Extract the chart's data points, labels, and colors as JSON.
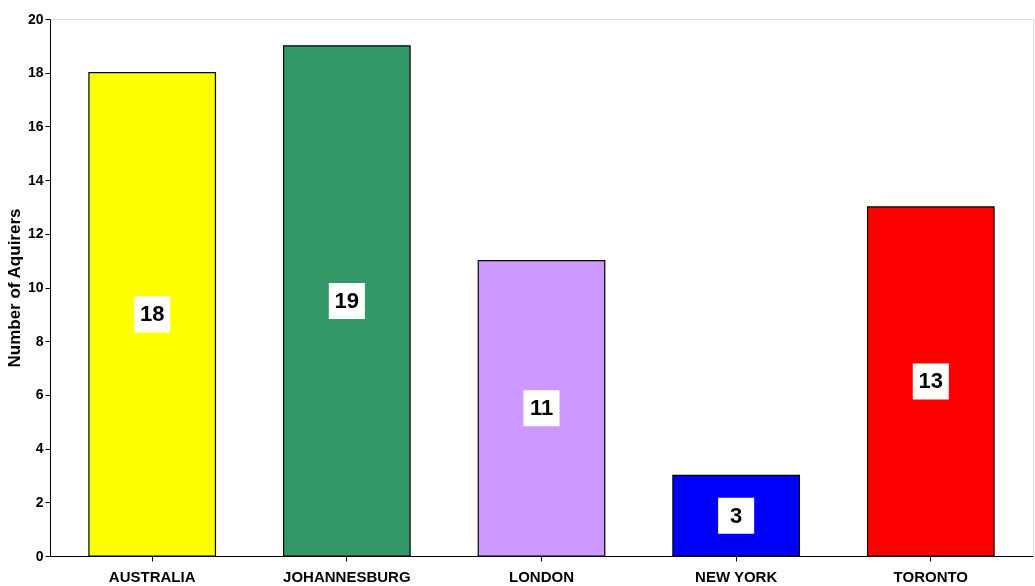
{
  "chart_data": {
    "type": "bar",
    "ylabel": "Number of Aquirers",
    "categories": [
      "AUSTRALIA",
      "JOHANNESBURG",
      "LONDON",
      "NEW YORK",
      "TORONTO"
    ],
    "values": [
      18,
      19,
      11,
      3,
      13
    ],
    "colors": [
      "#ffff00",
      "#339966",
      "#cc99ff",
      "#0000ff",
      "#ff0000"
    ],
    "ylim": [
      0,
      20
    ],
    "yticks": [
      0,
      2,
      4,
      6,
      8,
      10,
      12,
      14,
      16,
      18,
      20
    ],
    "data_labels": true
  }
}
